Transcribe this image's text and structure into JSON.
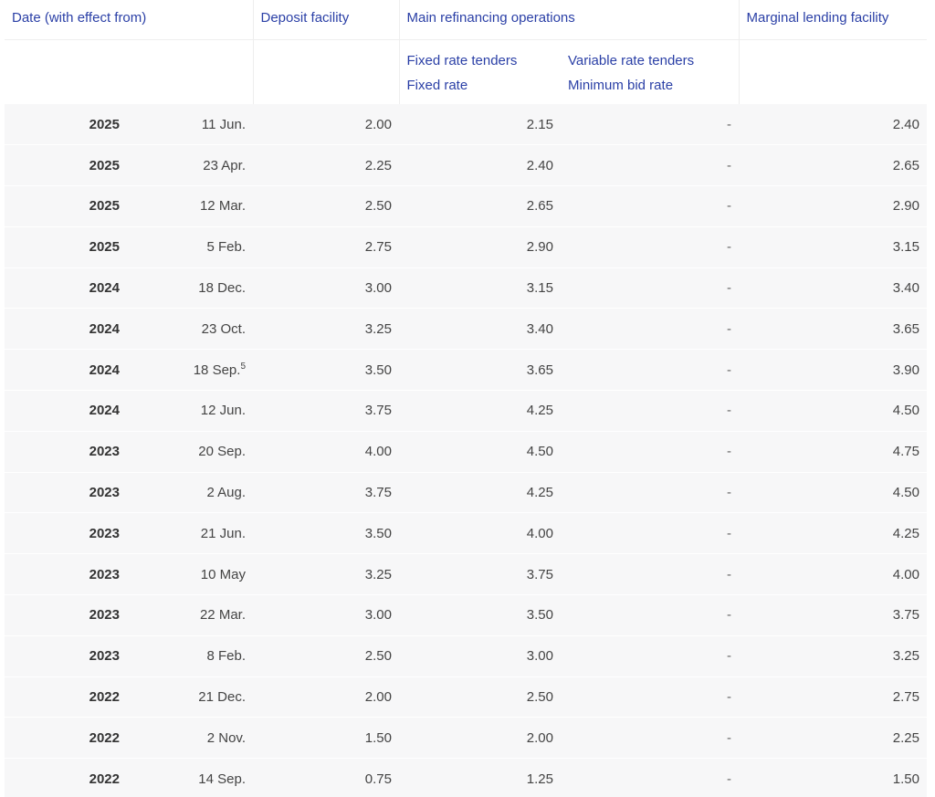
{
  "headers": {
    "date": "Date (with effect from)",
    "deposit": "Deposit facility",
    "mro": "Main refinancing operations",
    "marginal": "Marginal lending facility",
    "fixed_tenders": "Fixed rate tenders",
    "fixed_rate": "Fixed rate",
    "variable_tenders": "Variable rate tenders",
    "min_bid": "Minimum bid rate"
  },
  "rows": [
    {
      "year": "2025",
      "date": "11 Jun.",
      "note": "",
      "deposit": "2.00",
      "fixed": "2.15",
      "variable": "-",
      "marginal": "2.40"
    },
    {
      "year": "2025",
      "date": "23 Apr.",
      "note": "",
      "deposit": "2.25",
      "fixed": "2.40",
      "variable": "-",
      "marginal": "2.65"
    },
    {
      "year": "2025",
      "date": "12 Mar.",
      "note": "",
      "deposit": "2.50",
      "fixed": "2.65",
      "variable": "-",
      "marginal": "2.90"
    },
    {
      "year": "2025",
      "date": "5 Feb.",
      "note": "",
      "deposit": "2.75",
      "fixed": "2.90",
      "variable": "-",
      "marginal": "3.15"
    },
    {
      "year": "2024",
      "date": "18 Dec.",
      "note": "",
      "deposit": "3.00",
      "fixed": "3.15",
      "variable": "-",
      "marginal": "3.40"
    },
    {
      "year": "2024",
      "date": "23 Oct.",
      "note": "",
      "deposit": "3.25",
      "fixed": "3.40",
      "variable": "-",
      "marginal": "3.65"
    },
    {
      "year": "2024",
      "date": "18 Sep.",
      "note": "5",
      "deposit": "3.50",
      "fixed": "3.65",
      "variable": "-",
      "marginal": "3.90"
    },
    {
      "year": "2024",
      "date": "12 Jun.",
      "note": "",
      "deposit": "3.75",
      "fixed": "4.25",
      "variable": "-",
      "marginal": "4.50"
    },
    {
      "year": "2023",
      "date": "20 Sep.",
      "note": "",
      "deposit": "4.00",
      "fixed": "4.50",
      "variable": "-",
      "marginal": "4.75"
    },
    {
      "year": "2023",
      "date": "2 Aug.",
      "note": "",
      "deposit": "3.75",
      "fixed": "4.25",
      "variable": "-",
      "marginal": "4.50"
    },
    {
      "year": "2023",
      "date": "21 Jun.",
      "note": "",
      "deposit": "3.50",
      "fixed": "4.00",
      "variable": "-",
      "marginal": "4.25"
    },
    {
      "year": "2023",
      "date": "10 May",
      "note": "",
      "deposit": "3.25",
      "fixed": "3.75",
      "variable": "-",
      "marginal": "4.00"
    },
    {
      "year": "2023",
      "date": "22 Mar.",
      "note": "",
      "deposit": "3.00",
      "fixed": "3.50",
      "variable": "-",
      "marginal": "3.75"
    },
    {
      "year": "2023",
      "date": "8 Feb.",
      "note": "",
      "deposit": "2.50",
      "fixed": "3.00",
      "variable": "-",
      "marginal": "3.25"
    },
    {
      "year": "2022",
      "date": "21 Dec.",
      "note": "",
      "deposit": "2.00",
      "fixed": "2.50",
      "variable": "-",
      "marginal": "2.75"
    },
    {
      "year": "2022",
      "date": "2 Nov.",
      "note": "",
      "deposit": "1.50",
      "fixed": "2.00",
      "variable": "-",
      "marginal": "2.25"
    },
    {
      "year": "2022",
      "date": "14 Sep.",
      "note": "",
      "deposit": "0.75",
      "fixed": "1.25",
      "variable": "-",
      "marginal": "1.50"
    }
  ],
  "colors": {
    "header_text": "#2a3fa6",
    "row_background": "#f7f7f8",
    "body_text": "#444444"
  }
}
